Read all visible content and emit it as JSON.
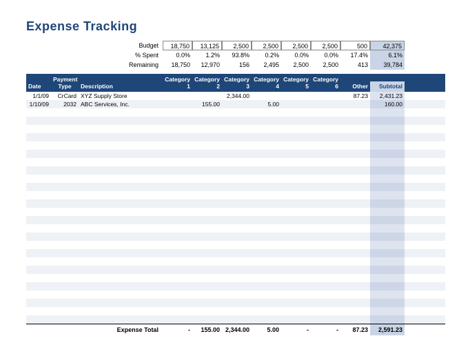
{
  "title": "Expense Tracking",
  "summary": {
    "labels": {
      "budget": "Budget",
      "pctSpent": "% Spent",
      "remaining": "Remaining"
    },
    "budget": [
      "18,750",
      "13,125",
      "2,500",
      "2,500",
      "2,500",
      "2,500",
      "500",
      "42,375"
    ],
    "pctSpent": [
      "0.0%",
      "1.2%",
      "93.8%",
      "0.2%",
      "0.0%",
      "0.0%",
      "17.4%",
      "6.1%"
    ],
    "remaining": [
      "18,750",
      "12,970",
      "156",
      "2,495",
      "2,500",
      "2,500",
      "413",
      "39,784"
    ]
  },
  "headers": {
    "date": "Date",
    "ptype": "Payment Type",
    "desc": "Description",
    "cats": [
      "Category 1",
      "Category 2",
      "Category 3",
      "Category 4",
      "Category 5",
      "Category 6",
      "Other"
    ],
    "subtotal": "Subtotal"
  },
  "rows": [
    {
      "date": "1/1/09",
      "ptype": "CrCard",
      "desc": "XYZ Supply Store",
      "cats": [
        "",
        "",
        "2,344.00",
        "",
        "",
        "",
        "87.23"
      ],
      "sub": "2,431.23"
    },
    {
      "date": "1/10/09",
      "ptype": "2032",
      "desc": "ABC Services, Inc.",
      "cats": [
        "",
        "155.00",
        "",
        "5.00",
        "",
        "",
        ""
      ],
      "sub": "160.00"
    }
  ],
  "emptyRowCount": 26,
  "totals": {
    "label": "Expense Total",
    "cats": [
      "-",
      "155.00",
      "2,344.00",
      "5.00",
      "-",
      "-",
      "87.23"
    ],
    "sub": "2,591.23"
  },
  "colors": {
    "headerBg": "#1e4678",
    "title": "#1e4678",
    "altRow": "#eef1f5",
    "subCol": "#dde4ef",
    "subColAlt": "#cdd6e6",
    "totalBg": "#c9d4e6"
  }
}
